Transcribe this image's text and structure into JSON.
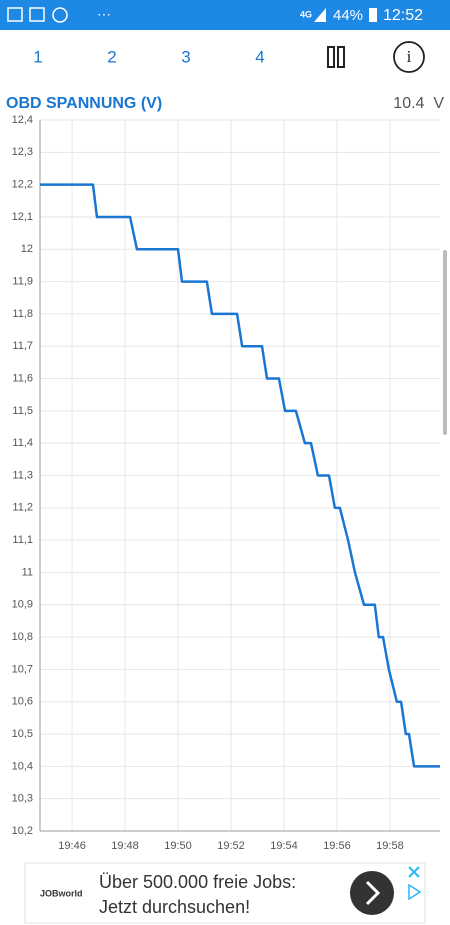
{
  "status_bar": {
    "network": "4G",
    "battery": "44%",
    "time": "12:52"
  },
  "tabs": [
    "1",
    "2",
    "3",
    "4"
  ],
  "chart_data": {
    "type": "line",
    "title": "OBD SPANNUNG (V)",
    "current_value": "10.4  V",
    "x": [
      44.79,
      46.79,
      46.94,
      48.19,
      48.45,
      50.0,
      50.15,
      51.09,
      51.28,
      52.23,
      52.42,
      53.17,
      53.36,
      53.81,
      54.04,
      54.45,
      54.79,
      55.02,
      55.28,
      55.7,
      55.92,
      56.11,
      56.42,
      56.68,
      57.02,
      57.43,
      57.58,
      57.74,
      57.96,
      58.26,
      58.42,
      58.6,
      58.72,
      58.91,
      59.89
    ],
    "values": [
      12.2,
      12.2,
      12.1,
      12.1,
      12.0,
      12.0,
      11.9,
      11.9,
      11.8,
      11.8,
      11.7,
      11.7,
      11.6,
      11.6,
      11.5,
      11.5,
      11.4,
      11.4,
      11.3,
      11.3,
      11.2,
      11.2,
      11.1,
      11.0,
      10.9,
      10.9,
      10.8,
      10.8,
      10.7,
      10.6,
      10.6,
      10.5,
      10.5,
      10.4,
      10.4
    ],
    "color": "#1976d2",
    "xlim": [
      44.79,
      59.89
    ],
    "xticks": [
      {
        "value": 46,
        "label": "19:46"
      },
      {
        "value": 48,
        "label": "19:48"
      },
      {
        "value": 50,
        "label": "19:50"
      },
      {
        "value": 52,
        "label": "19:52"
      },
      {
        "value": 54,
        "label": "19:54"
      },
      {
        "value": 56,
        "label": "19:56"
      },
      {
        "value": 58,
        "label": "19:58"
      }
    ],
    "ylim": [
      10.2,
      12.4
    ],
    "yticks": [
      {
        "value": 10.2,
        "label": "10,2"
      },
      {
        "value": 10.3,
        "label": "10,3"
      },
      {
        "value": 10.4,
        "label": "10,4"
      },
      {
        "value": 10.5,
        "label": "10,5"
      },
      {
        "value": 10.6,
        "label": "10,6"
      },
      {
        "value": 10.7,
        "label": "10,7"
      },
      {
        "value": 10.8,
        "label": "10,8"
      },
      {
        "value": 10.9,
        "label": "10,9"
      },
      {
        "value": 11,
        "label": "11"
      },
      {
        "value": 11.1,
        "label": "11,1"
      },
      {
        "value": 11.2,
        "label": "11,2"
      },
      {
        "value": 11.3,
        "label": "11,3"
      },
      {
        "value": 11.4,
        "label": "11,4"
      },
      {
        "value": 11.5,
        "label": "11,5"
      },
      {
        "value": 11.6,
        "label": "11,6"
      },
      {
        "value": 11.7,
        "label": "11,7"
      },
      {
        "value": 11.8,
        "label": "11,8"
      },
      {
        "value": 11.9,
        "label": "11,9"
      },
      {
        "value": 12,
        "label": "12"
      },
      {
        "value": 12.1,
        "label": "12,1"
      },
      {
        "value": 12.2,
        "label": "12,2"
      },
      {
        "value": 12.3,
        "label": "12,3"
      },
      {
        "value": 12.4,
        "label": "12,4"
      }
    ],
    "grid": true
  },
  "ad": {
    "logo": "JOBworld",
    "line1": "Über 500.000 freie Jobs:",
    "line2": "Jetzt durchsuchen!"
  }
}
